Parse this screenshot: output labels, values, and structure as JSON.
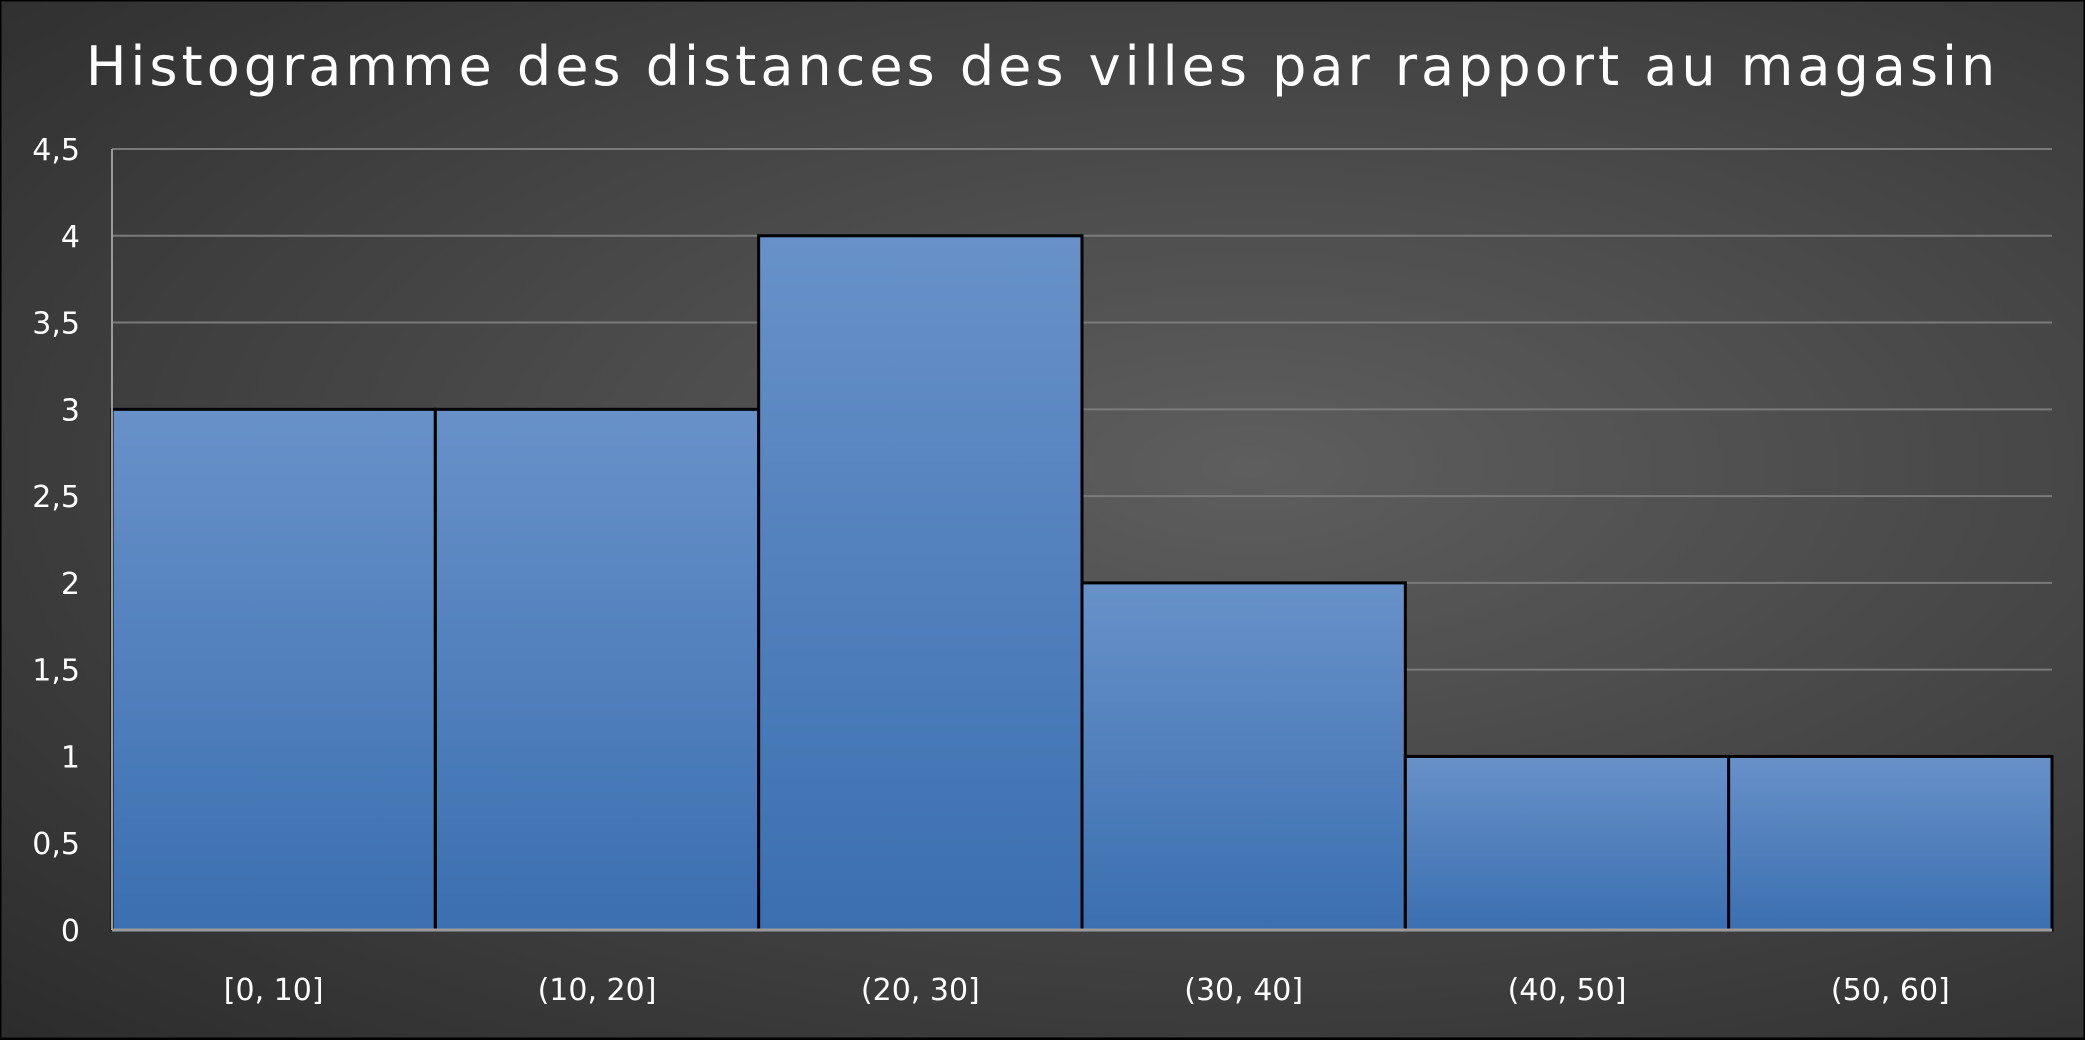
{
  "chart_data": {
    "type": "bar",
    "title": "Histogramme des distances des villes par rapport au magasin",
    "categories": [
      "[0, 10]",
      "(10, 20]",
      "(20, 30]",
      "(30, 40]",
      "(40, 50]",
      "(50, 60]"
    ],
    "values": [
      3,
      3,
      4,
      2,
      1,
      1
    ],
    "ylim": [
      0,
      4.5
    ],
    "yticks": [
      "0",
      "0,5",
      "1",
      "1,5",
      "2",
      "2,5",
      "3",
      "3,5",
      "4",
      "4,5"
    ],
    "ytick_values": [
      0,
      0.5,
      1,
      1.5,
      2,
      2.5,
      3,
      3.5,
      4,
      4.5
    ],
    "grid": true,
    "bar_color_top": "#6891c9",
    "bar_color_bottom": "#3b6fb0",
    "bar_edge_color": "#000000",
    "background_color": "#4a4a4a",
    "text_color": "#ffffff"
  }
}
